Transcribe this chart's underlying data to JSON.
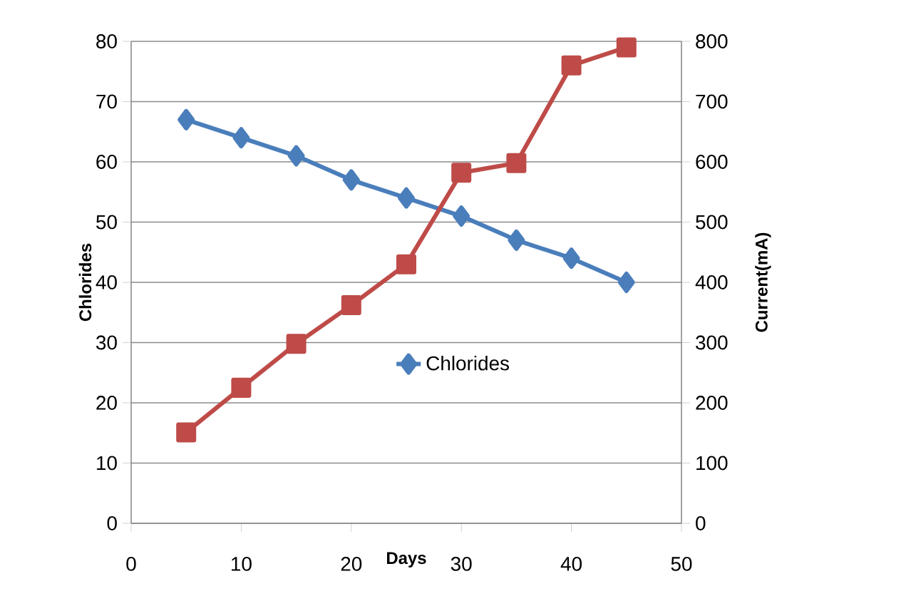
{
  "chart_data": {
    "type": "line",
    "xlabel": "Days",
    "ylabel": "Chlorides",
    "y2label": "Current(mA)",
    "x": [
      5,
      10,
      15,
      20,
      25,
      30,
      35,
      40,
      45
    ],
    "series": [
      {
        "name": "Chlorides",
        "color": "#4a7ebb",
        "marker": "diamond",
        "values": [
          67,
          64,
          61,
          57,
          54,
          51,
          47,
          44,
          40
        ]
      },
      {
        "color": "#be4b48",
        "marker": "square",
        "axis": "y2",
        "values": [
          151,
          225,
          298,
          362,
          430,
          582,
          598,
          760,
          790
        ]
      }
    ],
    "xlim": [
      0,
      50
    ],
    "xticks": [
      0,
      10,
      20,
      30,
      40,
      50
    ],
    "ylim": [
      0,
      80
    ],
    "yticks": [
      0,
      10,
      20,
      30,
      40,
      50,
      60,
      70,
      80
    ],
    "y2lim": [
      0,
      800
    ],
    "y2ticks": [
      0,
      100,
      200,
      300,
      400,
      500,
      600,
      700,
      800
    ],
    "grid": "y",
    "legend": "center"
  }
}
